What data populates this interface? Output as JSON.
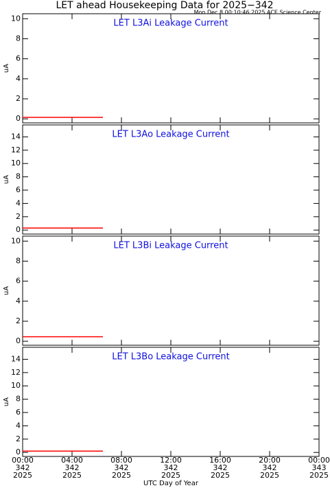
{
  "title": "LET ahead Housekeeping Data for 2025−342",
  "subtitle": "Mon Dec  8 00:10:46 2025 ACE Science Center",
  "x_axis": {
    "label": "UTC Day of Year",
    "xlim": [
      0,
      24
    ],
    "xticks": [
      {
        "value": 0,
        "label": "00:00\n342\n2025"
      },
      {
        "value": 4,
        "label": "04:00\n342\n2025"
      },
      {
        "value": 8,
        "label": "08:00\n342\n2025"
      },
      {
        "value": 12,
        "label": "12:00\n342\n2025"
      },
      {
        "value": 16,
        "label": "16:00\n342\n2025"
      },
      {
        "value": 20,
        "label": "20:00\n342\n2025"
      },
      {
        "value": 24,
        "label": "00:00\n343\n2025"
      }
    ]
  },
  "chart_data": [
    {
      "type": "line",
      "title": "LET L3Ai Leakage Current",
      "ylabel": "uA",
      "ylim": [
        -0.4,
        10.5
      ],
      "yticks": [
        0,
        2,
        4,
        6,
        8,
        10
      ],
      "series": [
        {
          "color": "#ff0000",
          "x": [
            0,
            6.5
          ],
          "values": [
            0.15,
            0.15
          ]
        }
      ]
    },
    {
      "type": "line",
      "title": "LET L3Ao Leakage Current",
      "ylabel": "uA",
      "ylim": [
        -0.6,
        15.8
      ],
      "yticks": [
        0,
        2,
        4,
        6,
        8,
        10,
        12,
        14
      ],
      "series": [
        {
          "color": "#ff0000",
          "x": [
            0,
            6.5
          ],
          "values": [
            0.3,
            0.3
          ]
        }
      ]
    },
    {
      "type": "line",
      "title": "LET L3Bi Leakage Current",
      "ylabel": "uA",
      "ylim": [
        -0.4,
        10.5
      ],
      "yticks": [
        0,
        2,
        4,
        6,
        8,
        10
      ],
      "series": [
        {
          "color": "#ff0000",
          "x": [
            0,
            6.5
          ],
          "values": [
            0.45,
            0.45
          ]
        }
      ]
    },
    {
      "type": "line",
      "title": "LET L3Bo Leakage Current",
      "ylabel": "uA",
      "ylim": [
        -0.6,
        15.8
      ],
      "yticks": [
        0,
        2,
        4,
        6,
        8,
        10,
        12,
        14
      ],
      "series": [
        {
          "color": "#ff0000",
          "x": [
            0,
            6.5
          ],
          "values": [
            0.2,
            0.2
          ]
        }
      ]
    }
  ]
}
